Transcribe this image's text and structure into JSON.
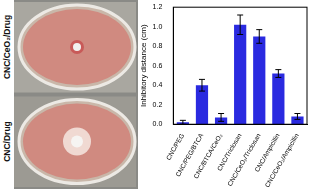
{
  "chart_data": {
    "type": "bar",
    "y_label": "Inhibitory distance (cm)",
    "categories": [
      "CNC/PEG",
      "CNC/PEG/BTCA",
      "CNC/BTCA/CeO₂",
      "CNC/Triclosan",
      "CNC/CeO₂/Triclosan",
      "CNC/Ampicillin",
      "CNC/CeO₂/Ampicillin"
    ],
    "values": [
      0.02,
      0.4,
      0.07,
      1.02,
      0.9,
      0.52,
      0.08
    ],
    "errors": [
      0.02,
      0.06,
      0.04,
      0.1,
      0.07,
      0.04,
      0.03
    ],
    "color": "#2a2ae0",
    "ylim": [
      0,
      1.2
    ],
    "yticks": [
      {
        "value": 0,
        "label": "0.0"
      },
      0.2,
      0.4,
      0.6,
      0.8,
      {
        "value": 1,
        "label": "1.0"
      },
      1.2
    ],
    "grid": false
  },
  "photo_labels": [
    "CNC/CeO₂/Drug",
    "CNC/Drug"
  ]
}
